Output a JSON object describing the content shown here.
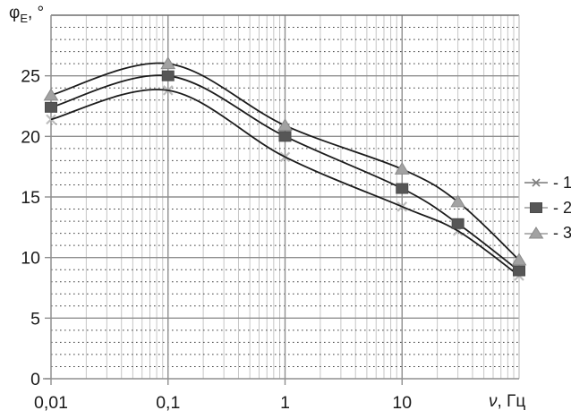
{
  "chart_data": {
    "type": "line",
    "title": "",
    "ylabel_phi": "φ",
    "ylabel_sub": "E",
    "ylabel_suffix": ", °",
    "xlabel_symbol": "ν",
    "xlabel_suffix": ", Гц",
    "x_scale": "log",
    "x_range": [
      0.01,
      100
    ],
    "y_range": [
      0,
      30
    ],
    "x_tick_values": [
      0.01,
      0.1,
      1,
      10
    ],
    "x_tick_labels": [
      "0,01",
      "0,1",
      "1",
      "10"
    ],
    "y_tick_values": [
      0,
      5,
      10,
      15,
      20,
      25
    ],
    "y_tick_labels": [
      "0",
      "5",
      "10",
      "15",
      "20",
      "25"
    ],
    "grid": "major solid gray every 5 (y) and per decade (x); minor dotted dark every 1 (y); minor light solid log subdivisions (x)",
    "legend_position": "right-outside",
    "x": [
      0.01,
      0.1,
      1,
      10,
      30,
      100
    ],
    "series": [
      {
        "name": "1",
        "marker": "x-cross",
        "line_color": "#1c1c1c",
        "marker_color": "#bdbdbd",
        "values": [
          21.4,
          23.8,
          18.3,
          14.2,
          12.2,
          8.5
        ]
      },
      {
        "name": "2",
        "marker": "square",
        "line_color": "#1c1c1c",
        "marker_color": "#565656",
        "values": [
          22.4,
          25.0,
          20.0,
          15.7,
          12.8,
          8.9
        ]
      },
      {
        "name": "3",
        "marker": "triangle",
        "line_color": "#1c1c1c",
        "marker_color": "#a2a2a2",
        "values": [
          23.4,
          26.0,
          20.9,
          17.3,
          14.6,
          9.8
        ]
      }
    ],
    "legend": [
      {
        "label": "- 1"
      },
      {
        "label": "- 2"
      },
      {
        "label": "- 3"
      }
    ]
  },
  "colors": {
    "background": "#ffffff",
    "curve": "#1c1c1c",
    "grid_major": "#8f8f8f",
    "grid_minor_h": "#404040",
    "grid_minor_v": "#c6c6c6",
    "border_top": "#6e6e6e",
    "border_right": "#c0c0c0",
    "text": "#1a1a1a",
    "legend_line": "#9a9a9a"
  }
}
